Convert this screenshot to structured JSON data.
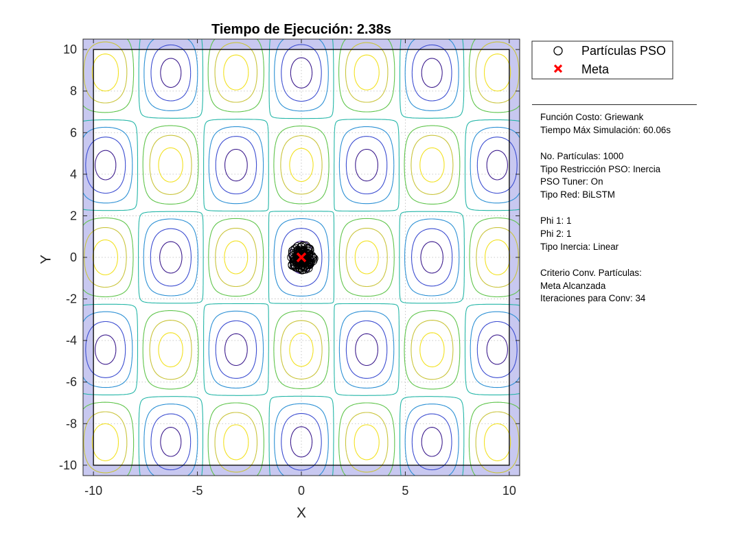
{
  "colors": {
    "boundary_fill": "#c8c8f0",
    "goal_marker": "#ff0000",
    "particles": "#000000",
    "contour_palette": [
      "#3b1a8c",
      "#3a4bd0",
      "#2a8fd4",
      "#22b5a6",
      "#5ec44a",
      "#c9c43a",
      "#f2e11e"
    ]
  },
  "chart_data": {
    "type": "contour",
    "title": "Tiempo de Ejecución: 2.38s",
    "xlabel": "X",
    "ylabel": "Y",
    "xlim": [
      -10.5,
      10.5
    ],
    "ylim": [
      -10.5,
      10.5
    ],
    "grid": true,
    "xticks": [
      -10,
      -5,
      0,
      5,
      10
    ],
    "yticks": [
      10,
      8,
      6,
      4,
      2,
      0,
      -2,
      -4,
      -6,
      -8,
      -10
    ],
    "xtick_labels": [
      "-10",
      "-5",
      "0",
      "5",
      "10"
    ],
    "ytick_labels": [
      "10",
      "8",
      "6",
      "4",
      "2",
      "0",
      "-2",
      "-4",
      "-6",
      "-8",
      "-10"
    ],
    "function": "Griewank",
    "search_boundary": [
      -10,
      10
    ],
    "legend": {
      "location": "outside-top-right",
      "entries": [
        {
          "label": "Partículas PSO",
          "marker": "circle"
        },
        {
          "label": "Meta",
          "marker": "x"
        }
      ]
    },
    "goal": {
      "x": 0,
      "y": 0
    },
    "particle_count": 1000
  },
  "info_panel": [
    "Función Costo: Griewank",
    "Tiempo Máx Simulación: 60.06s",
    "",
    "No. Partículas: 1000",
    "Tipo Restricción PSO: Inercia",
    "PSO Tuner: On",
    "Tipo Red: BiLSTM",
    "",
    "Phi 1: 1",
    "Phi 2: 1",
    "Tipo Inercia: Linear",
    "",
    "Criterio Conv. Partículas:",
    "Meta Alcanzada",
    "Iteraciones para Conv: 34"
  ]
}
